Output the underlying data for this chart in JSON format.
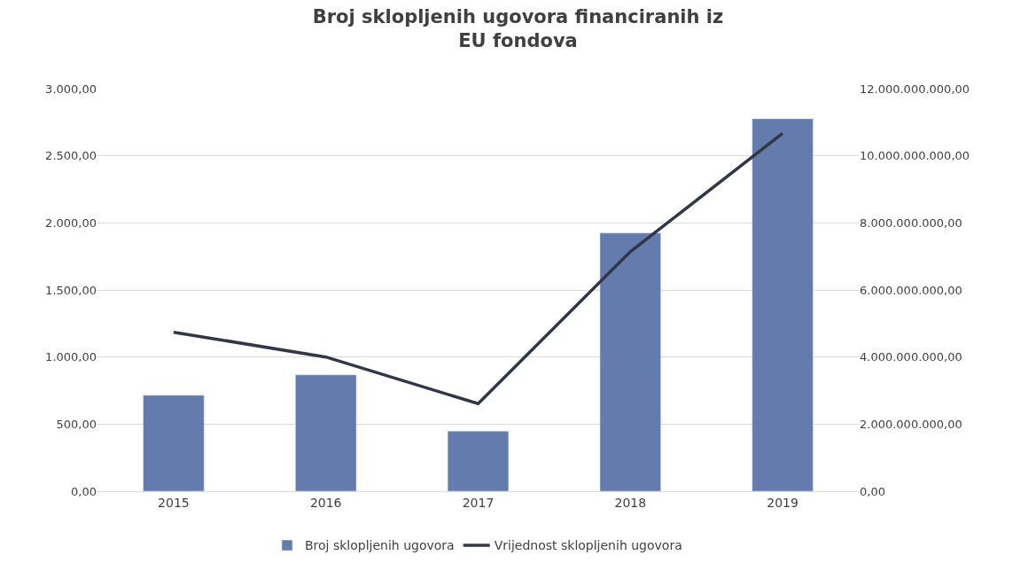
{
  "chart_data": {
    "type": "bar",
    "title": "Broj sklopljenih ugovora financiranih iz\nEU fondova",
    "categories": [
      "2015",
      "2016",
      "2017",
      "2018",
      "2019"
    ],
    "series": [
      {
        "name": "Broj sklopljenih ugovora",
        "color": "#647bad",
        "values": [
          715,
          867,
          448,
          1924,
          2776
        ]
      },
      {
        "name": "Vrijednost sklopljenih ugovora",
        "type": "line",
        "axis": "y2",
        "color": "#323748",
        "values": [
          4740000000,
          4000000000,
          2610000000,
          7140000000,
          10670000000
        ]
      }
    ],
    "ylim": [
      0,
      3000
    ],
    "yticks": [
      {
        "value": 0,
        "label": "0,00"
      },
      {
        "value": 500,
        "label": "500,00"
      },
      {
        "value": 1000,
        "label": "1.000,00"
      },
      {
        "value": 1500,
        "label": "1.500,00"
      },
      {
        "value": 2000,
        "label": "2.000,00"
      },
      {
        "value": 2500,
        "label": "2.500,00"
      },
      {
        "value": 3000,
        "label": "3.000,00"
      }
    ],
    "y2lim": [
      0,
      12000000000
    ],
    "y2ticks": [
      {
        "value": 0,
        "label": "0,00"
      },
      {
        "value": 2000000000,
        "label": "2.000.000.000,00"
      },
      {
        "value": 4000000000,
        "label": "4.000.000.000,00"
      },
      {
        "value": 6000000000,
        "label": "6.000.000.000,00"
      },
      {
        "value": 8000000000,
        "label": "8.000.000.000,00"
      },
      {
        "value": 10000000000,
        "label": "10.000.000.000,00"
      },
      {
        "value": 12000000000,
        "label": "12.000.000.000,00"
      }
    ],
    "grid": "y",
    "legend": "bottom",
    "marker": "none",
    "line_style": "solid"
  }
}
